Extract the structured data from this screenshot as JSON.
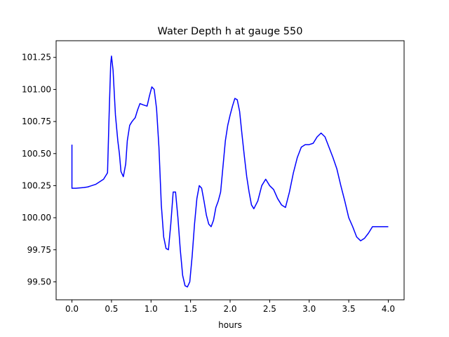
{
  "chart_data": {
    "type": "line",
    "title": "Water Depth h at gauge 550",
    "xlabel": "hours",
    "ylabel": "",
    "xlim": [
      -0.2,
      4.2
    ],
    "ylim": [
      99.36,
      101.38
    ],
    "xticks": [
      0.0,
      0.5,
      1.0,
      1.5,
      2.0,
      2.5,
      3.0,
      3.5,
      4.0
    ],
    "xtick_labels": [
      "0.0",
      "0.5",
      "1.0",
      "1.5",
      "2.0",
      "2.5",
      "3.0",
      "3.5",
      "4.0"
    ],
    "yticks": [
      99.5,
      99.75,
      100.0,
      100.25,
      100.5,
      100.75,
      101.0,
      101.25
    ],
    "ytick_labels": [
      "99.50",
      "99.75",
      "100.00",
      "100.25",
      "100.50",
      "100.75",
      "101.00",
      "101.25"
    ],
    "grid": false,
    "series": [
      {
        "color": "#0000ff",
        "x": [
          0.0,
          0.0,
          0.05,
          0.15,
          0.2,
          0.3,
          0.4,
          0.45,
          0.47,
          0.49,
          0.5,
          0.52,
          0.55,
          0.58,
          0.6,
          0.62,
          0.65,
          0.68,
          0.7,
          0.73,
          0.76,
          0.8,
          0.83,
          0.86,
          0.9,
          0.95,
          0.98,
          1.01,
          1.04,
          1.07,
          1.1,
          1.13,
          1.16,
          1.19,
          1.22,
          1.25,
          1.28,
          1.31,
          1.34,
          1.37,
          1.4,
          1.43,
          1.46,
          1.49,
          1.52,
          1.55,
          1.58,
          1.61,
          1.64,
          1.67,
          1.7,
          1.73,
          1.76,
          1.79,
          1.82,
          1.85,
          1.88,
          1.91,
          1.94,
          1.97,
          2.0,
          2.03,
          2.06,
          2.09,
          2.12,
          2.15,
          2.18,
          2.21,
          2.24,
          2.27,
          2.3,
          2.35,
          2.4,
          2.45,
          2.5,
          2.55,
          2.6,
          2.65,
          2.7,
          2.75,
          2.8,
          2.85,
          2.9,
          2.95,
          3.0,
          3.05,
          3.1,
          3.15,
          3.2,
          3.25,
          3.3,
          3.35,
          3.4,
          3.45,
          3.5,
          3.55,
          3.6,
          3.65,
          3.7,
          3.75,
          3.8,
          3.85,
          3.9,
          3.95,
          4.0
        ],
        "y": [
          100.57,
          100.23,
          100.23,
          100.235,
          100.24,
          100.26,
          100.3,
          100.35,
          100.8,
          101.2,
          101.26,
          101.15,
          100.8,
          100.6,
          100.5,
          100.36,
          100.32,
          100.42,
          100.6,
          100.72,
          100.75,
          100.78,
          100.84,
          100.89,
          100.88,
          100.87,
          100.95,
          101.02,
          101.0,
          100.85,
          100.55,
          100.1,
          99.85,
          99.76,
          99.75,
          99.95,
          100.2,
          100.2,
          100.0,
          99.75,
          99.55,
          99.47,
          99.46,
          99.5,
          99.7,
          99.95,
          100.15,
          100.25,
          100.23,
          100.13,
          100.02,
          99.95,
          99.93,
          99.98,
          100.08,
          100.13,
          100.2,
          100.4,
          100.6,
          100.72,
          100.8,
          100.87,
          100.93,
          100.92,
          100.83,
          100.65,
          100.48,
          100.32,
          100.2,
          100.1,
          100.07,
          100.13,
          100.25,
          100.3,
          100.25,
          100.22,
          100.15,
          100.1,
          100.08,
          100.2,
          100.35,
          100.47,
          100.55,
          100.57,
          100.57,
          100.58,
          100.63,
          100.66,
          100.63,
          100.55,
          100.47,
          100.38,
          100.25,
          100.13,
          100.0,
          99.93,
          99.85,
          99.82,
          99.84,
          99.88,
          99.93,
          99.93,
          99.93,
          99.93,
          99.93
        ]
      }
    ]
  }
}
